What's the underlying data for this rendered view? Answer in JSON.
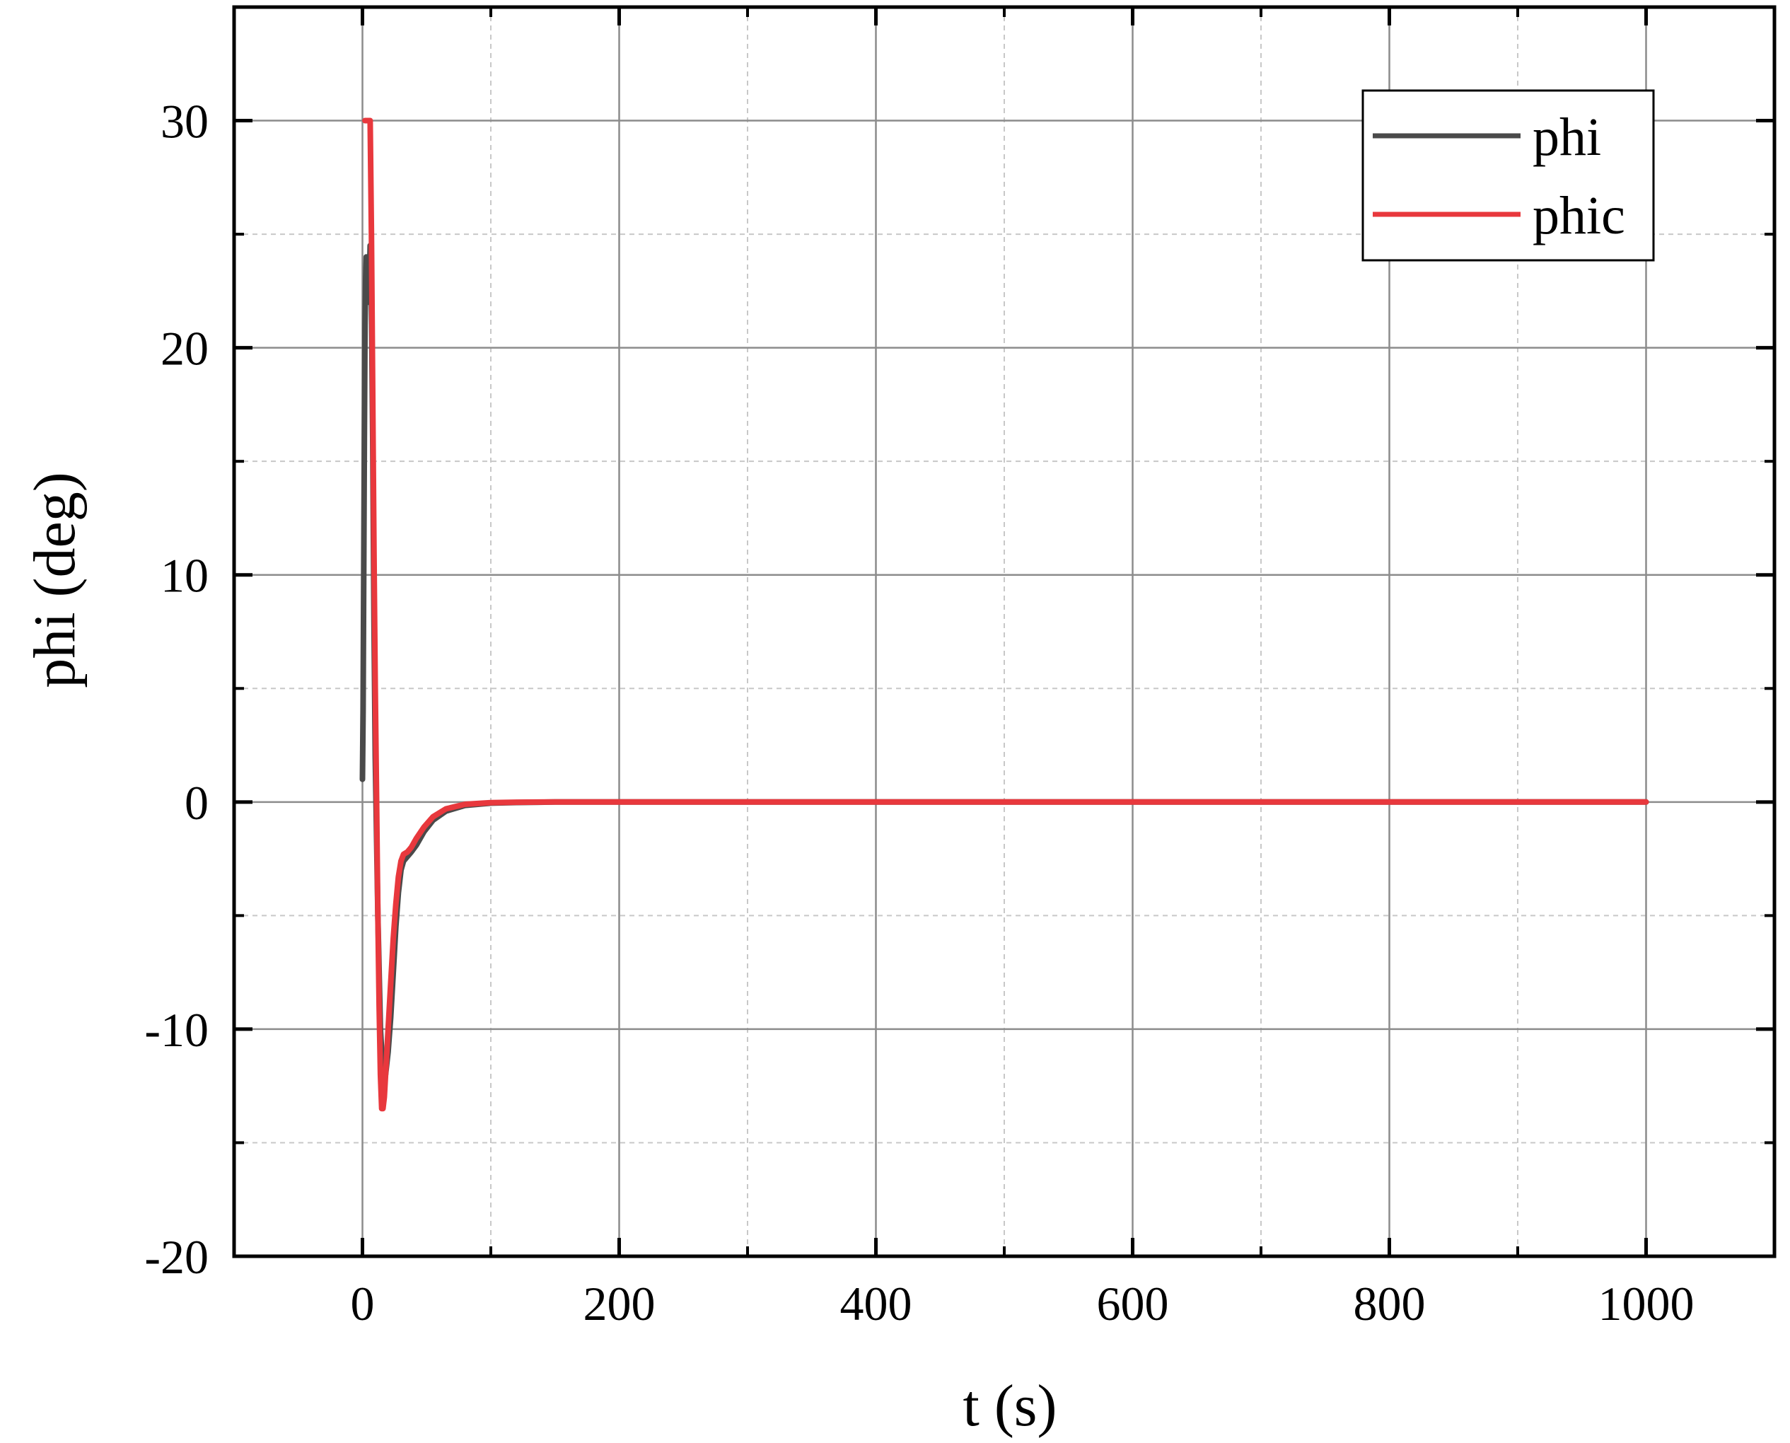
{
  "chart_data": {
    "type": "line",
    "xlabel": "t (s)",
    "ylabel": "phi (deg)",
    "xlim": [
      -100,
      1100
    ],
    "ylim": [
      -20,
      35
    ],
    "x_ticks": [
      0,
      200,
      400,
      600,
      800,
      1000
    ],
    "x_tick_labels": [
      "0",
      "200",
      "400",
      "600",
      "800",
      "1000"
    ],
    "y_ticks": [
      -20,
      -10,
      0,
      10,
      20,
      30
    ],
    "y_tick_labels": [
      "-20",
      "-10",
      "0",
      "10",
      "20",
      "30"
    ],
    "x_minor_grid": [
      100,
      300,
      500,
      700,
      900
    ],
    "y_minor_grid": [
      -15,
      -5,
      5,
      15,
      25
    ],
    "grid": true,
    "legend_position": "top-right",
    "series": [
      {
        "name": "phi",
        "color": "#4a4a4a",
        "x": [
          0,
          0.5,
          1,
          1.5,
          2,
          2.5,
          3,
          4,
          5,
          6,
          7,
          8,
          9,
          10,
          12,
          14,
          16,
          18,
          20,
          22,
          24,
          26,
          28,
          30,
          32,
          35,
          38,
          42,
          48,
          55,
          65,
          80,
          100,
          120,
          150,
          200,
          300,
          500,
          1000
        ],
        "y": [
          1,
          4,
          10,
          16,
          21,
          23,
          24,
          23,
          22,
          24.5,
          22,
          16,
          8,
          2,
          -5,
          -10,
          -12,
          -12,
          -11,
          -9.5,
          -7.5,
          -5.5,
          -4,
          -3,
          -2.6,
          -2.4,
          -2.2,
          -1.9,
          -1.3,
          -0.8,
          -0.4,
          -0.15,
          -0.05,
          -0.02,
          0,
          0,
          0,
          0,
          0
        ]
      },
      {
        "name": "phic",
        "color": "#e8383d",
        "x": [
          2,
          3,
          4,
          5,
          6,
          7,
          8,
          9,
          10,
          11,
          12,
          13,
          14,
          15,
          16,
          17,
          18,
          19,
          20,
          22,
          24,
          26,
          28,
          30,
          32,
          35,
          38,
          42,
          48,
          55,
          65,
          80,
          100,
          120,
          150,
          200,
          300,
          500,
          1000
        ],
        "y": [
          30,
          30,
          30,
          30,
          30,
          25,
          18,
          11,
          5,
          0,
          -5,
          -9,
          -12,
          -13.5,
          -13.5,
          -13,
          -12,
          -11,
          -10,
          -8,
          -6,
          -4.5,
          -3.3,
          -2.6,
          -2.3,
          -2.2,
          -2,
          -1.6,
          -1.1,
          -0.65,
          -0.3,
          -0.1,
          -0.03,
          -0.01,
          0,
          0,
          0,
          0,
          0
        ]
      }
    ]
  }
}
